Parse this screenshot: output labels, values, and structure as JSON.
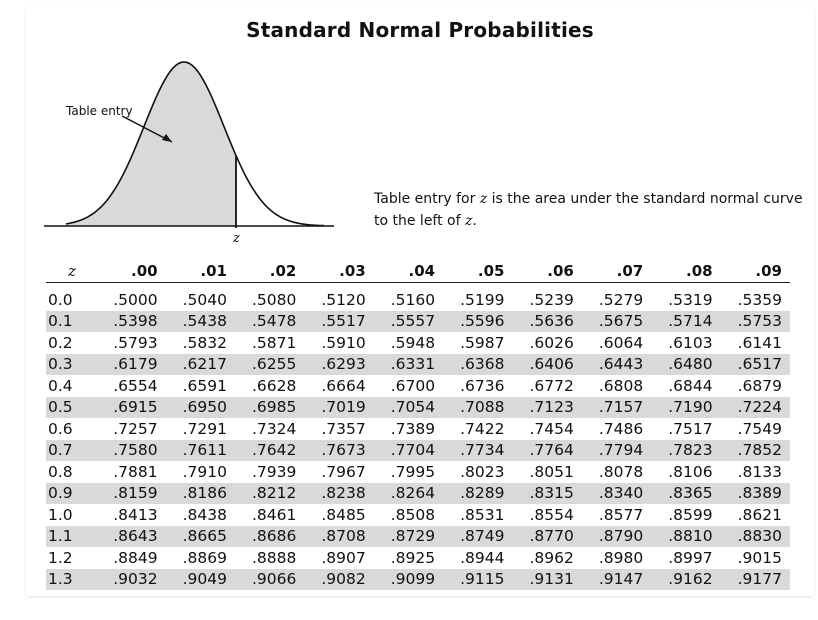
{
  "title": "Standard Normal Probabilities",
  "figure": {
    "entry_label": "Table entry",
    "z_label": "z"
  },
  "description": {
    "part1": "Table entry for ",
    "z1": "z",
    "part2": " is the area under the standard normal curve to the left of ",
    "z2": "z",
    "part3": "."
  },
  "table": {
    "z_header": "z",
    "columns": [
      ".00",
      ".01",
      ".02",
      ".03",
      ".04",
      ".05",
      ".06",
      ".07",
      ".08",
      ".09"
    ],
    "rows": [
      {
        "z": "0.0",
        "values": [
          ".5000",
          ".5040",
          ".5080",
          ".5120",
          ".5160",
          ".5199",
          ".5239",
          ".5279",
          ".5319",
          ".5359"
        ]
      },
      {
        "z": "0.1",
        "values": [
          ".5398",
          ".5438",
          ".5478",
          ".5517",
          ".5557",
          ".5596",
          ".5636",
          ".5675",
          ".5714",
          ".5753"
        ]
      },
      {
        "z": "0.2",
        "values": [
          ".5793",
          ".5832",
          ".5871",
          ".5910",
          ".5948",
          ".5987",
          ".6026",
          ".6064",
          ".6103",
          ".6141"
        ]
      },
      {
        "z": "0.3",
        "values": [
          ".6179",
          ".6217",
          ".6255",
          ".6293",
          ".6331",
          ".6368",
          ".6406",
          ".6443",
          ".6480",
          ".6517"
        ]
      },
      {
        "z": "0.4",
        "values": [
          ".6554",
          ".6591",
          ".6628",
          ".6664",
          ".6700",
          ".6736",
          ".6772",
          ".6808",
          ".6844",
          ".6879"
        ]
      },
      {
        "z": "0.5",
        "values": [
          ".6915",
          ".6950",
          ".6985",
          ".7019",
          ".7054",
          ".7088",
          ".7123",
          ".7157",
          ".7190",
          ".7224"
        ]
      },
      {
        "z": "0.6",
        "values": [
          ".7257",
          ".7291",
          ".7324",
          ".7357",
          ".7389",
          ".7422",
          ".7454",
          ".7486",
          ".7517",
          ".7549"
        ]
      },
      {
        "z": "0.7",
        "values": [
          ".7580",
          ".7611",
          ".7642",
          ".7673",
          ".7704",
          ".7734",
          ".7764",
          ".7794",
          ".7823",
          ".7852"
        ]
      },
      {
        "z": "0.8",
        "values": [
          ".7881",
          ".7910",
          ".7939",
          ".7967",
          ".7995",
          ".8023",
          ".8051",
          ".8078",
          ".8106",
          ".8133"
        ]
      },
      {
        "z": "0.9",
        "values": [
          ".8159",
          ".8186",
          ".8212",
          ".8238",
          ".8264",
          ".8289",
          ".8315",
          ".8340",
          ".8365",
          ".8389"
        ]
      },
      {
        "z": "1.0",
        "values": [
          ".8413",
          ".8438",
          ".8461",
          ".8485",
          ".8508",
          ".8531",
          ".8554",
          ".8577",
          ".8599",
          ".8621"
        ]
      },
      {
        "z": "1.1",
        "values": [
          ".8643",
          ".8665",
          ".8686",
          ".8708",
          ".8729",
          ".8749",
          ".8770",
          ".8790",
          ".8810",
          ".8830"
        ]
      },
      {
        "z": "1.2",
        "values": [
          ".8849",
          ".8869",
          ".8888",
          ".8907",
          ".8925",
          ".8944",
          ".8962",
          ".8980",
          ".8997",
          ".9015"
        ]
      },
      {
        "z": "1.3",
        "values": [
          ".9032",
          ".9049",
          ".9066",
          ".9082",
          ".9099",
          ".9115",
          ".9131",
          ".9147",
          ".9162",
          ".9177"
        ]
      }
    ]
  },
  "colors": {
    "shade_fill": "#d9d9d9",
    "row_shade": "#d9d9d9",
    "ink": "#111111"
  }
}
